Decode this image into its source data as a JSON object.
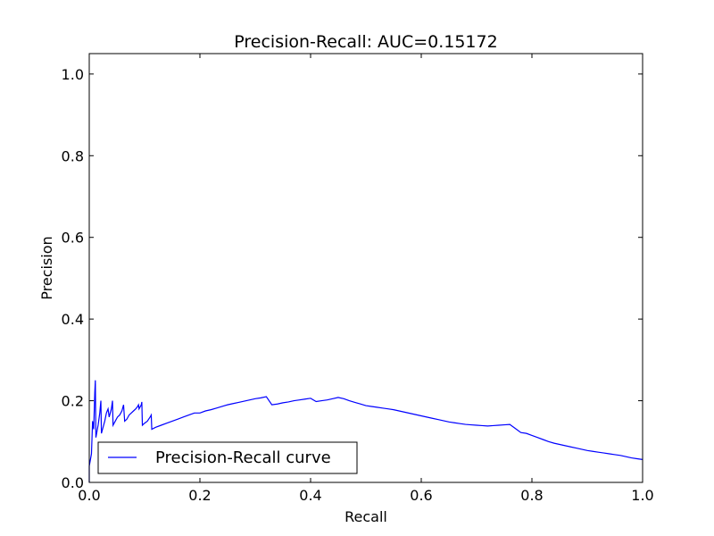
{
  "chart_data": {
    "type": "line",
    "title": "Precision-Recall: AUC=0.15172",
    "xlabel": "Recall",
    "ylabel": "Precision",
    "xlim": [
      0.0,
      1.0
    ],
    "ylim": [
      0.0,
      1.05
    ],
    "xticks": [
      "0.0",
      "0.2",
      "0.4",
      "0.6",
      "0.8",
      "1.0"
    ],
    "yticks": [
      "0.0",
      "0.2",
      "0.4",
      "0.6",
      "0.8",
      "1.0"
    ],
    "grid": false,
    "legend_position": "lower-left",
    "series": [
      {
        "name": "Precision-Recall curve",
        "color": "#0000ff",
        "points": [
          [
            0.0,
            0.0
          ],
          [
            0.0,
            0.04
          ],
          [
            0.004,
            0.07
          ],
          [
            0.006,
            0.15
          ],
          [
            0.008,
            0.13
          ],
          [
            0.01,
            0.22
          ],
          [
            0.011,
            0.25
          ],
          [
            0.012,
            0.11
          ],
          [
            0.016,
            0.14
          ],
          [
            0.019,
            0.17
          ],
          [
            0.021,
            0.2
          ],
          [
            0.022,
            0.12
          ],
          [
            0.026,
            0.14
          ],
          [
            0.028,
            0.15
          ],
          [
            0.031,
            0.17
          ],
          [
            0.034,
            0.18
          ],
          [
            0.036,
            0.16
          ],
          [
            0.04,
            0.18
          ],
          [
            0.042,
            0.2
          ],
          [
            0.043,
            0.14
          ],
          [
            0.047,
            0.15
          ],
          [
            0.051,
            0.16
          ],
          [
            0.055,
            0.165
          ],
          [
            0.059,
            0.175
          ],
          [
            0.062,
            0.19
          ],
          [
            0.064,
            0.15
          ],
          [
            0.068,
            0.155
          ],
          [
            0.072,
            0.165
          ],
          [
            0.076,
            0.17
          ],
          [
            0.08,
            0.175
          ],
          [
            0.084,
            0.18
          ],
          [
            0.087,
            0.185
          ],
          [
            0.089,
            0.19
          ],
          [
            0.09,
            0.18
          ],
          [
            0.094,
            0.19
          ],
          [
            0.095,
            0.197
          ],
          [
            0.096,
            0.14
          ],
          [
            0.1,
            0.145
          ],
          [
            0.105,
            0.15
          ],
          [
            0.11,
            0.16
          ],
          [
            0.112,
            0.165
          ],
          [
            0.113,
            0.13
          ],
          [
            0.12,
            0.135
          ],
          [
            0.13,
            0.14
          ],
          [
            0.14,
            0.145
          ],
          [
            0.15,
            0.15
          ],
          [
            0.16,
            0.155
          ],
          [
            0.17,
            0.16
          ],
          [
            0.18,
            0.165
          ],
          [
            0.19,
            0.17
          ],
          [
            0.2,
            0.17
          ],
          [
            0.21,
            0.175
          ],
          [
            0.22,
            0.178
          ],
          [
            0.23,
            0.182
          ],
          [
            0.24,
            0.186
          ],
          [
            0.25,
            0.19
          ],
          [
            0.26,
            0.193
          ],
          [
            0.27,
            0.196
          ],
          [
            0.28,
            0.199
          ],
          [
            0.29,
            0.202
          ],
          [
            0.3,
            0.205
          ],
          [
            0.31,
            0.207
          ],
          [
            0.32,
            0.21
          ],
          [
            0.33,
            0.19
          ],
          [
            0.34,
            0.192
          ],
          [
            0.35,
            0.195
          ],
          [
            0.36,
            0.197
          ],
          [
            0.37,
            0.2
          ],
          [
            0.38,
            0.202
          ],
          [
            0.39,
            0.204
          ],
          [
            0.4,
            0.206
          ],
          [
            0.41,
            0.198
          ],
          [
            0.42,
            0.2
          ],
          [
            0.43,
            0.202
          ],
          [
            0.44,
            0.205
          ],
          [
            0.45,
            0.208
          ],
          [
            0.46,
            0.205
          ],
          [
            0.47,
            0.2
          ],
          [
            0.48,
            0.196
          ],
          [
            0.49,
            0.192
          ],
          [
            0.5,
            0.188
          ],
          [
            0.51,
            0.186
          ],
          [
            0.52,
            0.184
          ],
          [
            0.53,
            0.182
          ],
          [
            0.54,
            0.18
          ],
          [
            0.55,
            0.178
          ],
          [
            0.56,
            0.175
          ],
          [
            0.57,
            0.172
          ],
          [
            0.58,
            0.169
          ],
          [
            0.59,
            0.166
          ],
          [
            0.6,
            0.163
          ],
          [
            0.61,
            0.16
          ],
          [
            0.62,
            0.157
          ],
          [
            0.63,
            0.154
          ],
          [
            0.64,
            0.151
          ],
          [
            0.65,
            0.148
          ],
          [
            0.66,
            0.146
          ],
          [
            0.67,
            0.144
          ],
          [
            0.68,
            0.142
          ],
          [
            0.69,
            0.141
          ],
          [
            0.7,
            0.14
          ],
          [
            0.71,
            0.139
          ],
          [
            0.72,
            0.138
          ],
          [
            0.73,
            0.139
          ],
          [
            0.74,
            0.14
          ],
          [
            0.75,
            0.141
          ],
          [
            0.76,
            0.142
          ],
          [
            0.77,
            0.132
          ],
          [
            0.78,
            0.122
          ],
          [
            0.79,
            0.12
          ],
          [
            0.8,
            0.115
          ],
          [
            0.81,
            0.11
          ],
          [
            0.82,
            0.105
          ],
          [
            0.83,
            0.1
          ],
          [
            0.84,
            0.096
          ],
          [
            0.85,
            0.093
          ],
          [
            0.86,
            0.09
          ],
          [
            0.87,
            0.087
          ],
          [
            0.88,
            0.084
          ],
          [
            0.89,
            0.081
          ],
          [
            0.9,
            0.078
          ],
          [
            0.91,
            0.076
          ],
          [
            0.92,
            0.074
          ],
          [
            0.93,
            0.072
          ],
          [
            0.94,
            0.07
          ],
          [
            0.95,
            0.068
          ],
          [
            0.96,
            0.066
          ],
          [
            0.97,
            0.063
          ],
          [
            0.98,
            0.06
          ],
          [
            0.99,
            0.058
          ],
          [
            1.0,
            0.056
          ]
        ]
      }
    ]
  }
}
